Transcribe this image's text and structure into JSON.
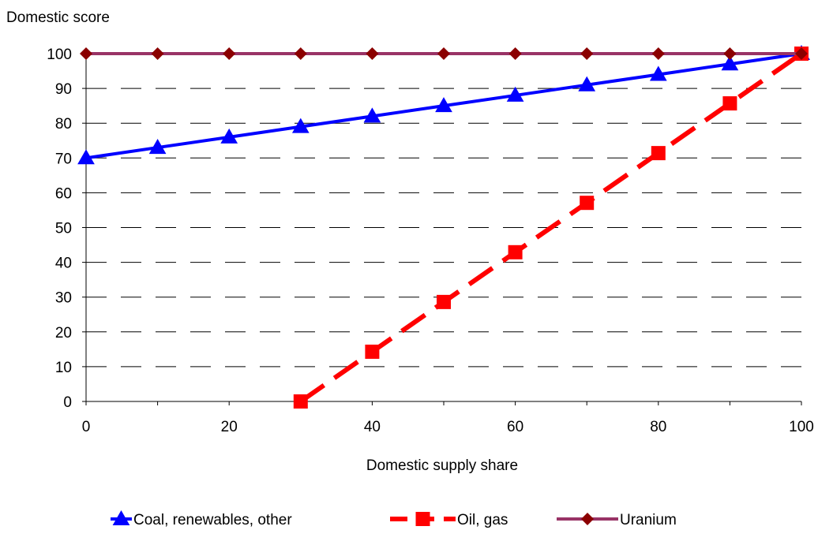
{
  "chart_data": {
    "type": "line",
    "title": "",
    "ylabel": "Domestic score",
    "xlabel": "Domestic supply share",
    "xlim": [
      0,
      100
    ],
    "ylim": [
      0,
      100
    ],
    "xticks": [
      0,
      20,
      40,
      60,
      80,
      100
    ],
    "yticks": [
      0,
      10,
      20,
      30,
      40,
      50,
      60,
      70,
      80,
      90,
      100
    ],
    "grid": "horizontal dashed",
    "legend_position": "bottom",
    "series": [
      {
        "name": "Coal, renewables, other",
        "color": "#0000FF",
        "line_style": "solid",
        "marker": "triangle",
        "x": [
          0,
          10,
          20,
          30,
          40,
          50,
          60,
          70,
          80,
          90,
          100
        ],
        "y": [
          70,
          73,
          76,
          79,
          82,
          85,
          88,
          91,
          94,
          97,
          100
        ]
      },
      {
        "name": "Oil, gas",
        "color": "#FF0000",
        "line_style": "dashed",
        "marker": "square",
        "x": [
          30,
          40,
          50,
          60,
          70,
          80,
          90,
          100
        ],
        "y": [
          0,
          14.3,
          28.6,
          42.9,
          57.1,
          71.4,
          85.7,
          100
        ],
        "line_x_from": 28
      },
      {
        "name": "Uranium",
        "color": "#993366",
        "marker_color": "#8B0000",
        "line_style": "solid",
        "marker": "diamond",
        "x": [
          0,
          10,
          20,
          30,
          40,
          50,
          60,
          70,
          80,
          90,
          100
        ],
        "y": [
          100,
          100,
          100,
          100,
          100,
          100,
          100,
          100,
          100,
          100,
          100
        ]
      }
    ]
  }
}
